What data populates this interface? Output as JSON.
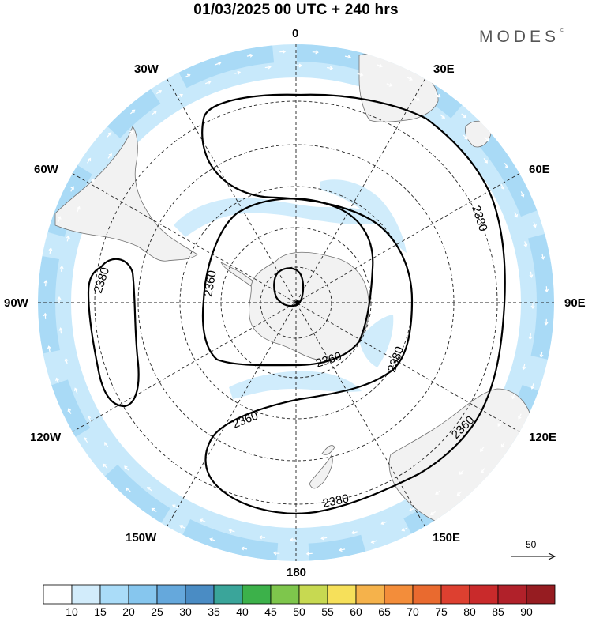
{
  "header": {
    "title": "01/03/2025  00 UTC  + 240 hrs",
    "brand": "MODES",
    "brand_mark": "©"
  },
  "map": {
    "projection": "south polar stereographic",
    "longitude_labels": {
      "n": "0",
      "nne": "30E",
      "ene": "60E",
      "e": "90E",
      "ese": "120E",
      "sse": "150E",
      "s": "180",
      "ssw": "150W",
      "wsw": "120W",
      "w": "90W",
      "wnw": "60W",
      "nnw": "30W"
    },
    "contour_labels": [
      "2380",
      "2360",
      "2360",
      "2380",
      "2380",
      "2360",
      "2380",
      "2360"
    ],
    "reference_vector": "50",
    "colors": {
      "land": "#f2f2f2",
      "shade_light": "#c8e9fb",
      "shade_mid": "#a3d6f5",
      "contour": "#000000"
    }
  },
  "colorbar": {
    "colors": [
      "#ffffff",
      "#d2ecfb",
      "#aadcf8",
      "#86c6ee",
      "#65a8dc",
      "#4a8cc4",
      "#3aa59a",
      "#3cb14a",
      "#7ec64c",
      "#c7d951",
      "#f6e05a",
      "#f5b24b",
      "#f38d3a",
      "#e96a2f",
      "#dd4030",
      "#c92a2b",
      "#b1212a",
      "#961c21"
    ],
    "tick_labels": [
      "10",
      "15",
      "20",
      "25",
      "30",
      "35",
      "40",
      "45",
      "50",
      "55",
      "60",
      "65",
      "70",
      "75",
      "80",
      "85",
      "90"
    ]
  }
}
